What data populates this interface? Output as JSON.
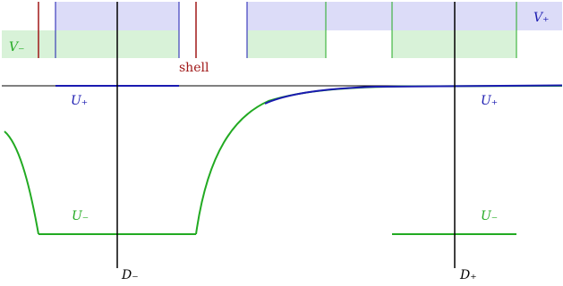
{
  "labels": {
    "v_plus": "V₊",
    "v_minus": "V₋",
    "u_plus_left": "U₊",
    "u_plus_right": "U₊",
    "u_minus_left": "U₋",
    "u_minus_right": "U₋",
    "d_minus": "D₋",
    "d_plus": "D₊",
    "shell": "shell"
  },
  "colors": {
    "v_plus_fill": "#dcdcf8",
    "v_minus_fill": "#d8f2d8",
    "blue_line": "#1a1ab0",
    "green_line": "#22aa22",
    "shell_red": "#a01818",
    "axis_black": "#000000",
    "u_plus_text": "#1a1ab0",
    "u_minus_text": "#22aa22",
    "v_plus_text": "#1a1ab0",
    "v_minus_text": "#22aa22"
  }
}
